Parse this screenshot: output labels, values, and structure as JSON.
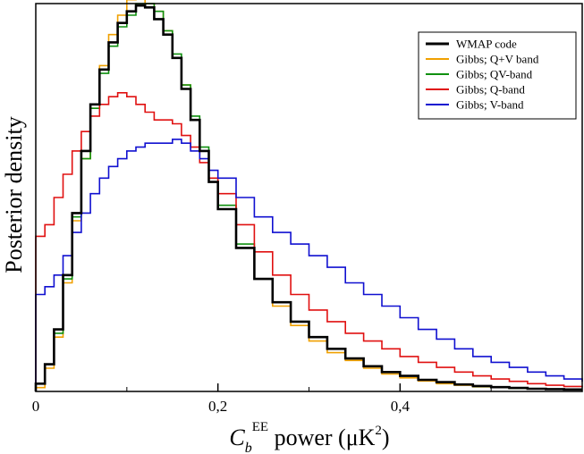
{
  "chart_data": {
    "type": "line",
    "xlabel": {
      "symbol": "C",
      "subscript": "b",
      "superscript": "EE",
      "text": " power (μK",
      "unit_power": "2",
      "close": ")"
    },
    "ylabel": "Posterior density",
    "xlim": [
      0,
      0.6
    ],
    "ylim": [
      0,
      1.0
    ],
    "xticks": [
      0,
      0.2,
      0.4
    ],
    "xtick_labels": [
      "0",
      "0,2",
      "0,4"
    ],
    "yticks_labeled": false,
    "grid": false,
    "legend": {
      "position": "top-right"
    },
    "step": true,
    "series": [
      {
        "name": "WMAP code",
        "color": "#000000",
        "width": 2.6,
        "x": [
          0.0,
          0.01,
          0.02,
          0.03,
          0.04,
          0.05,
          0.06,
          0.07,
          0.08,
          0.09,
          0.1,
          0.11,
          0.12,
          0.13,
          0.14,
          0.15,
          0.16,
          0.17,
          0.18,
          0.19,
          0.2,
          0.22,
          0.24,
          0.26,
          0.28,
          0.3,
          0.32,
          0.34,
          0.36,
          0.38,
          0.4,
          0.42,
          0.44,
          0.46,
          0.48,
          0.5,
          0.52,
          0.54,
          0.56,
          0.58,
          0.6
        ],
        "y": [
          0.02,
          0.07,
          0.16,
          0.3,
          0.46,
          0.62,
          0.74,
          0.83,
          0.9,
          0.95,
          0.98,
          0.995,
          0.99,
          0.96,
          0.92,
          0.86,
          0.78,
          0.7,
          0.62,
          0.54,
          0.47,
          0.37,
          0.29,
          0.23,
          0.18,
          0.14,
          0.11,
          0.085,
          0.065,
          0.05,
          0.04,
          0.03,
          0.024,
          0.018,
          0.014,
          0.011,
          0.009,
          0.007,
          0.006,
          0.005,
          0.005
        ]
      },
      {
        "name": "Gibbs; Q+V band",
        "color": "#f0a000",
        "width": 1.6,
        "x": [
          0.0,
          0.01,
          0.02,
          0.03,
          0.04,
          0.05,
          0.06,
          0.07,
          0.08,
          0.09,
          0.1,
          0.11,
          0.12,
          0.13,
          0.14,
          0.15,
          0.16,
          0.17,
          0.18,
          0.19,
          0.2,
          0.22,
          0.24,
          0.26,
          0.28,
          0.3,
          0.32,
          0.34,
          0.36,
          0.38,
          0.4,
          0.42,
          0.44,
          0.46,
          0.48,
          0.5,
          0.52,
          0.54,
          0.56,
          0.58,
          0.6
        ],
        "y": [
          0.01,
          0.06,
          0.14,
          0.28,
          0.44,
          0.6,
          0.73,
          0.84,
          0.92,
          0.97,
          1.01,
          1.02,
          1.0,
          0.98,
          0.93,
          0.86,
          0.79,
          0.7,
          0.62,
          0.54,
          0.47,
          0.37,
          0.29,
          0.22,
          0.17,
          0.13,
          0.1,
          0.08,
          0.06,
          0.045,
          0.035,
          0.027,
          0.02,
          0.016,
          0.012,
          0.01,
          0.008,
          0.007,
          0.006,
          0.005,
          0.005
        ]
      },
      {
        "name": "Gibbs; QV-band",
        "color": "#109010",
        "width": 1.6,
        "x": [
          0.0,
          0.01,
          0.02,
          0.03,
          0.04,
          0.05,
          0.06,
          0.07,
          0.08,
          0.09,
          0.1,
          0.11,
          0.12,
          0.13,
          0.14,
          0.15,
          0.16,
          0.17,
          0.18,
          0.19,
          0.2,
          0.22,
          0.24,
          0.26,
          0.28,
          0.3,
          0.32,
          0.34,
          0.36,
          0.38,
          0.4,
          0.42,
          0.44,
          0.46,
          0.48,
          0.5,
          0.52,
          0.54,
          0.56,
          0.58,
          0.6
        ],
        "y": [
          0.02,
          0.07,
          0.15,
          0.29,
          0.45,
          0.6,
          0.73,
          0.82,
          0.89,
          0.94,
          0.97,
          1.0,
          1.0,
          0.98,
          0.93,
          0.87,
          0.79,
          0.71,
          0.63,
          0.55,
          0.48,
          0.38,
          0.29,
          0.23,
          0.18,
          0.14,
          0.11,
          0.085,
          0.065,
          0.05,
          0.04,
          0.03,
          0.023,
          0.017,
          0.013,
          0.01,
          0.008,
          0.007,
          0.006,
          0.005,
          0.005
        ]
      },
      {
        "name": "Gibbs; Q-band",
        "color": "#e01010",
        "width": 1.6,
        "x": [
          0.0,
          0.01,
          0.02,
          0.03,
          0.04,
          0.05,
          0.06,
          0.07,
          0.08,
          0.09,
          0.1,
          0.11,
          0.12,
          0.13,
          0.14,
          0.15,
          0.16,
          0.17,
          0.18,
          0.19,
          0.2,
          0.22,
          0.24,
          0.26,
          0.28,
          0.3,
          0.32,
          0.34,
          0.36,
          0.38,
          0.4,
          0.42,
          0.44,
          0.46,
          0.48,
          0.5,
          0.52,
          0.54,
          0.56,
          0.58,
          0.6
        ],
        "y": [
          0.4,
          0.43,
          0.5,
          0.56,
          0.62,
          0.67,
          0.71,
          0.74,
          0.76,
          0.77,
          0.76,
          0.74,
          0.72,
          0.7,
          0.7,
          0.69,
          0.66,
          0.63,
          0.59,
          0.55,
          0.51,
          0.43,
          0.36,
          0.3,
          0.25,
          0.21,
          0.18,
          0.15,
          0.13,
          0.11,
          0.09,
          0.075,
          0.062,
          0.05,
          0.04,
          0.032,
          0.026,
          0.02,
          0.016,
          0.013,
          0.011
        ]
      },
      {
        "name": "Gibbs; V-band",
        "color": "#1010d0",
        "width": 1.6,
        "x": [
          0.0,
          0.01,
          0.02,
          0.03,
          0.04,
          0.05,
          0.06,
          0.07,
          0.08,
          0.09,
          0.1,
          0.11,
          0.12,
          0.13,
          0.14,
          0.15,
          0.16,
          0.17,
          0.18,
          0.19,
          0.2,
          0.22,
          0.24,
          0.26,
          0.28,
          0.3,
          0.32,
          0.34,
          0.36,
          0.38,
          0.4,
          0.42,
          0.44,
          0.46,
          0.48,
          0.5,
          0.52,
          0.54,
          0.56,
          0.58,
          0.6
        ],
        "y": [
          0.25,
          0.27,
          0.3,
          0.35,
          0.41,
          0.46,
          0.51,
          0.55,
          0.58,
          0.6,
          0.62,
          0.63,
          0.64,
          0.64,
          0.64,
          0.65,
          0.64,
          0.62,
          0.6,
          0.57,
          0.55,
          0.5,
          0.45,
          0.41,
          0.38,
          0.35,
          0.32,
          0.28,
          0.25,
          0.22,
          0.19,
          0.16,
          0.135,
          0.11,
          0.09,
          0.075,
          0.062,
          0.05,
          0.04,
          0.032,
          0.025
        ]
      }
    ]
  }
}
